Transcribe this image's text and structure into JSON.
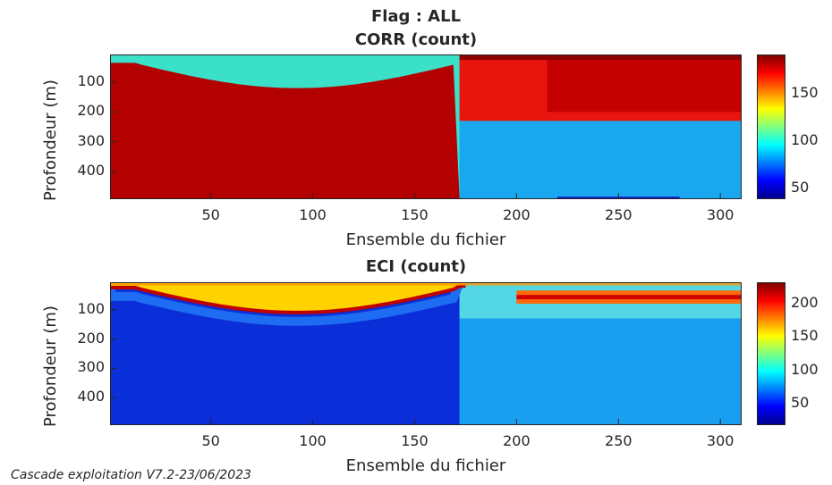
{
  "suptitle": "Flag : ALL",
  "footer": "Cascade exploitation V7.2-23/06/2023",
  "chart_data": [
    {
      "type": "heatmap",
      "title": "CORR (count)",
      "xlabel": "Ensemble du fichier",
      "ylabel": "Profondeur (m)",
      "xlim": [
        1,
        310
      ],
      "ylim": [
        490,
        10
      ],
      "xticks": [
        50,
        100,
        150,
        200,
        250,
        300
      ],
      "yticks": [
        100,
        200,
        300,
        400
      ],
      "colorbar": {
        "ticks": [
          50,
          100,
          150
        ],
        "clim": [
          40,
          190
        ],
        "colormap": "jet"
      },
      "colors": {
        "background_deep": "#3ae0c8",
        "surface": "#8b0000"
      }
    },
    {
      "type": "heatmap",
      "title": "ECI (count)",
      "xlabel": "Ensemble du fichier",
      "ylabel": "Profondeur (m)",
      "xlim": [
        1,
        310
      ],
      "ylim": [
        490,
        10
      ],
      "xticks": [
        50,
        100,
        150,
        200,
        250,
        300
      ],
      "yticks": [
        100,
        200,
        300,
        400
      ],
      "colorbar": {
        "ticks": [
          50,
          100,
          150,
          200
        ],
        "clim": [
          20,
          230
        ],
        "colormap": "jet"
      },
      "colors": {
        "background_deep": "#0a2fd8",
        "surface": "#ffd200"
      }
    }
  ]
}
